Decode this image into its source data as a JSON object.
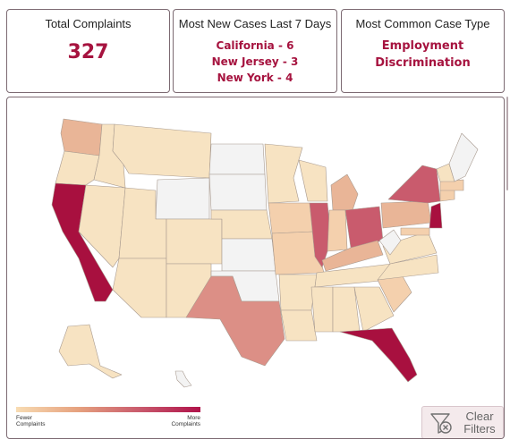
{
  "cards": {
    "total": {
      "title": "Total Complaints",
      "value": "327"
    },
    "recent": {
      "title": "Most New Cases Last 7 Days",
      "items": [
        "California - 6",
        "New Jersey - 3",
        "New York - 4"
      ]
    },
    "common": {
      "title": "Most Common Case Type",
      "lines": [
        "Employment",
        "Discrimination"
      ]
    }
  },
  "map": {
    "legend": {
      "low_lines": [
        "Fewer",
        "Complaints"
      ],
      "high_lines": [
        "More",
        "Complaints"
      ]
    },
    "clear_filters": {
      "lines": [
        "Clear",
        "Filters"
      ]
    },
    "colors": {
      "none": "#f3f3f3",
      "lowest": "#f7e3c2",
      "low": "#f4d0ad",
      "mid": "#e9b597",
      "high": "#dc8f86",
      "higher": "#c95b6d",
      "highest": "#a8103f",
      "border": "#a89a8f"
    }
  }
}
